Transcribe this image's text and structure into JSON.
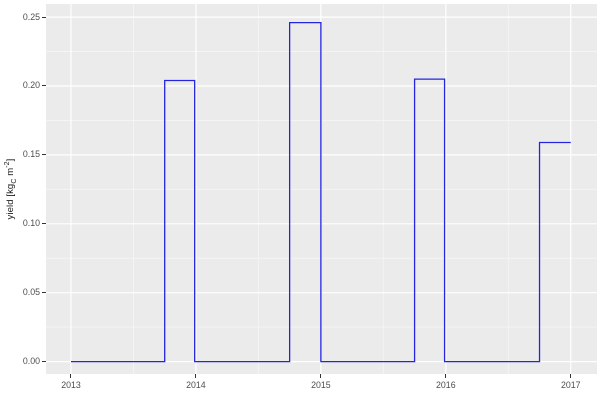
{
  "colors": {
    "figure_bg": "#FFFFFF",
    "panel_bg": "#EBEBEB",
    "grid_major": "#FFFFFF",
    "grid_minor": "#F4F4F4",
    "axis_text": "#4D4D4D",
    "axis_title": "#1A1A1A",
    "tick_mark": "#333333",
    "line": "#2525DF"
  },
  "y_axis": {
    "title_prefix": "yield [kg",
    "title_subscript": "C",
    "title_mid": " m",
    "title_superscript": "-2",
    "title_suffix": "]"
  },
  "chart_data": {
    "type": "line",
    "subtype": "step",
    "title": "",
    "xlabel": "",
    "ylabel": "yield [kgC m^-2]",
    "legend": false,
    "grid": true,
    "xlim": [
      2012.8,
      2017.21
    ],
    "ylim": [
      -0.009,
      0.2595
    ],
    "x_ticks": {
      "values": [
        2013,
        2014,
        2015,
        2016,
        2017
      ],
      "labels": [
        "2013",
        "2014",
        "2015",
        "2016",
        "2017"
      ]
    },
    "y_ticks": {
      "values": [
        0.0,
        0.05,
        0.1,
        0.15,
        0.2,
        0.25
      ],
      "labels": [
        "0.00",
        "0.05",
        "0.10",
        "0.15",
        "0.20",
        "0.25"
      ]
    },
    "x_minor": [
      2013.5,
      2014.5,
      2015.5,
      2016.5
    ],
    "y_minor": [
      0.025,
      0.075,
      0.125,
      0.175,
      0.225
    ],
    "series": [
      {
        "name": "yield",
        "color": "#2525DF",
        "points": [
          [
            2013.0,
            0
          ],
          [
            2013.75,
            0
          ],
          [
            2013.75,
            0.204
          ],
          [
            2013.99,
            0.204
          ],
          [
            2013.99,
            0
          ],
          [
            2014.75,
            0
          ],
          [
            2014.75,
            0.246
          ],
          [
            2015.0,
            0.246
          ],
          [
            2015.0,
            0
          ],
          [
            2015.75,
            0
          ],
          [
            2015.75,
            0.205
          ],
          [
            2015.99,
            0.205
          ],
          [
            2015.99,
            0
          ],
          [
            2016.75,
            0
          ],
          [
            2016.75,
            0.159
          ],
          [
            2017.0,
            0.159
          ]
        ]
      }
    ]
  }
}
